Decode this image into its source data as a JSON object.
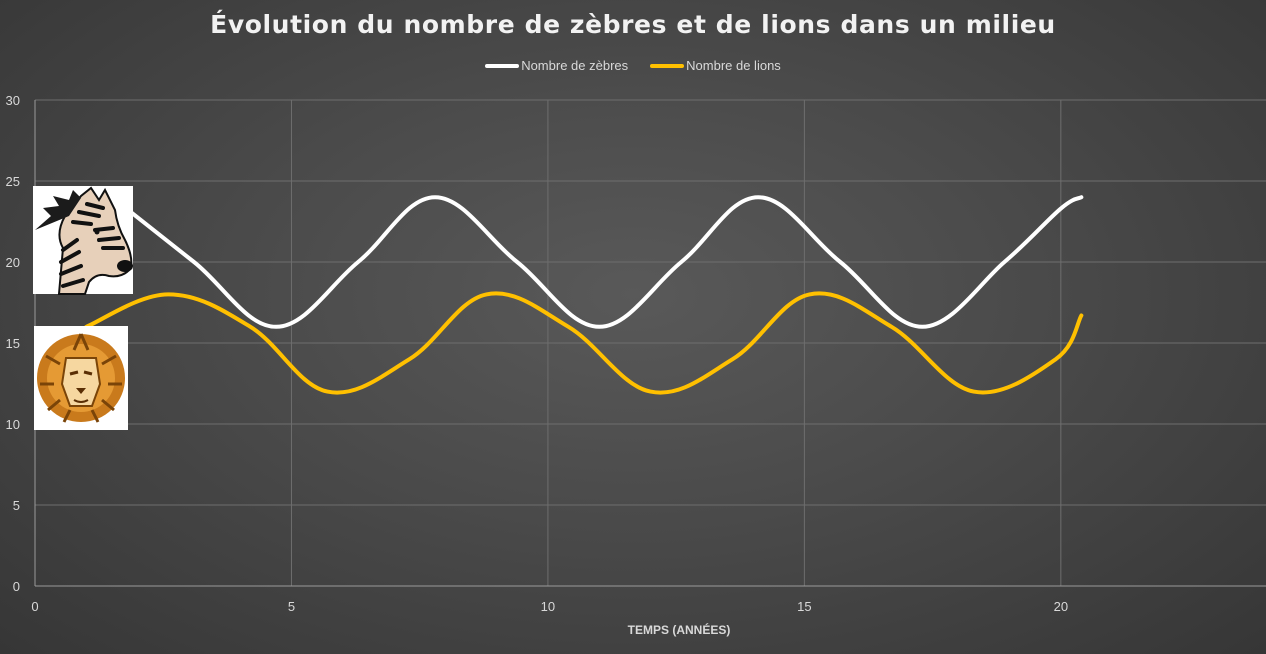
{
  "chart_data": {
    "type": "line",
    "title": "Évolution du nombre de zèbres et de lions dans un milieu",
    "xlabel": "TEMPS (ANNÉES)",
    "ylabel": "",
    "xlim": [
      0,
      24
    ],
    "ylim": [
      0,
      30
    ],
    "x_ticks": [
      "0",
      "5",
      "10",
      "15",
      "20"
    ],
    "y_ticks": [
      "0",
      "5",
      "10",
      "15",
      "20",
      "25",
      "30"
    ],
    "grid": true,
    "legend_position": "top",
    "series": [
      {
        "name": "Nombre de zèbres",
        "color": "#ffffff",
        "x": [
          1.5,
          3.1,
          4.7,
          6.3,
          7.8,
          9.4,
          11.0,
          12.6,
          14.1,
          15.7,
          17.3,
          18.9,
          20.0,
          20.4
        ],
        "y": [
          24,
          20,
          16,
          20,
          24,
          20,
          16,
          20,
          24,
          20,
          16,
          20,
          23.3,
          24
        ]
      },
      {
        "name": "Nombre de lions",
        "color": "#ffc000",
        "x": [
          1.0,
          2.6,
          4.2,
          5.7,
          7.3,
          8.8,
          10.4,
          12.0,
          13.6,
          15.1,
          16.7,
          18.3,
          19.9,
          20.4
        ],
        "y": [
          16.0,
          18,
          16,
          12,
          14,
          18,
          16,
          12,
          14,
          18,
          16,
          12,
          14,
          16.7
        ]
      }
    ]
  },
  "images": {
    "zebra": "zebra-head-illustration",
    "lion": "lion-head-illustration"
  }
}
